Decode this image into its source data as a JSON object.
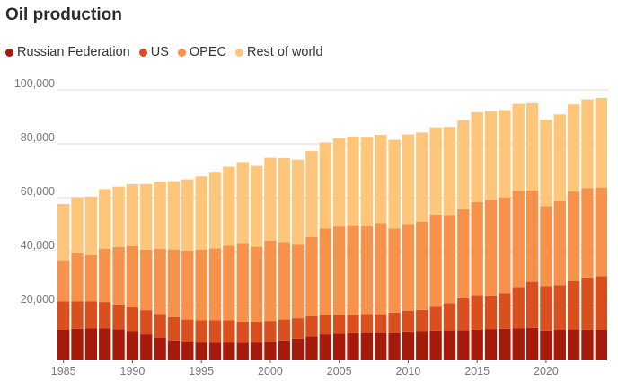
{
  "chart_data": {
    "type": "bar",
    "stacked": true,
    "title": "Oil production",
    "xlabel": "",
    "ylabel": "",
    "x": [
      1985,
      1986,
      1987,
      1988,
      1989,
      1990,
      1991,
      1992,
      1993,
      1994,
      1995,
      1996,
      1997,
      1998,
      1999,
      2000,
      2001,
      2002,
      2003,
      2004,
      2005,
      2006,
      2007,
      2008,
      2009,
      2010,
      2011,
      2012,
      2013,
      2014,
      2015,
      2016,
      2017,
      2018,
      2019,
      2020,
      2021,
      2022,
      2023,
      2024
    ],
    "x_ticks": [
      1985,
      1990,
      1995,
      2000,
      2005,
      2010,
      2015,
      2020
    ],
    "ylim": [
      0,
      100000
    ],
    "y_ticks": [
      {
        "value": 20000,
        "label": "20,000"
      },
      {
        "value": 40000,
        "label": "40,000"
      },
      {
        "value": 60000,
        "label": "60,000"
      },
      {
        "value": 80000,
        "label": "80,000"
      },
      {
        "value": 100000,
        "label": "100,000"
      }
    ],
    "grid": "horizontal",
    "legend_position": "top-left",
    "series": [
      {
        "name": "Russian Federation",
        "color": "#a51b0b",
        "values": [
          11000,
          11400,
          11600,
          11600,
          11200,
          10500,
          9300,
          8000,
          7100,
          6400,
          6300,
          6200,
          6300,
          6200,
          6300,
          6600,
          7100,
          7700,
          8600,
          9300,
          9600,
          9800,
          10000,
          10000,
          10100,
          10400,
          10500,
          10700,
          10800,
          10900,
          11100,
          11300,
          11400,
          11500,
          11700,
          10700,
          11000,
          11200,
          11100,
          11000
        ]
      },
      {
        "name": "US",
        "color": "#d9501e",
        "values": [
          10600,
          10200,
          9900,
          9700,
          9200,
          8900,
          9000,
          8900,
          8600,
          8400,
          8300,
          8300,
          8300,
          7900,
          7700,
          7700,
          7700,
          7600,
          7400,
          7200,
          6900,
          6800,
          6900,
          6800,
          7300,
          7600,
          7900,
          8900,
          10100,
          11800,
          12800,
          12400,
          13200,
          15400,
          17100,
          16500,
          16600,
          17800,
          19300,
          19900
        ]
      },
      {
        "name": "OPEC",
        "color": "#f7924c",
        "values": [
          15200,
          17800,
          17200,
          19800,
          21300,
          22600,
          22400,
          24200,
          25100,
          25600,
          26200,
          26700,
          27600,
          29100,
          27800,
          29700,
          28800,
          27300,
          29400,
          32000,
          33100,
          33200,
          32800,
          33800,
          31200,
          32200,
          32700,
          34100,
          32700,
          33000,
          34500,
          35500,
          35500,
          35600,
          33900,
          29700,
          31100,
          33300,
          33200,
          32900
        ]
      },
      {
        "name": "Rest of world",
        "color": "#fdc67a",
        "values": [
          20900,
          20800,
          21700,
          22100,
          22400,
          23000,
          24400,
          24800,
          25300,
          26400,
          27100,
          28400,
          29300,
          30000,
          30000,
          30800,
          31100,
          31500,
          31900,
          32000,
          32500,
          32900,
          32900,
          32700,
          32900,
          33300,
          33100,
          32400,
          32700,
          33100,
          33300,
          32900,
          32400,
          32300,
          32300,
          32000,
          32200,
          32300,
          32900,
          33200
        ]
      }
    ]
  }
}
